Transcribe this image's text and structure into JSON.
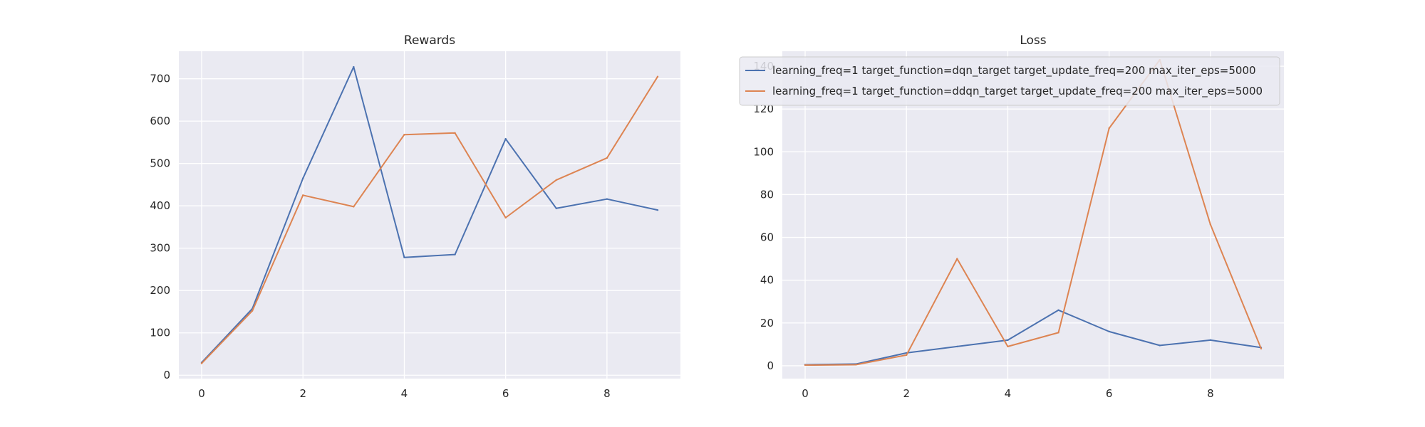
{
  "chart_data": [
    {
      "type": "line",
      "title": "Rewards",
      "xlabel": "",
      "ylabel": "",
      "x": [
        0,
        1,
        2,
        3,
        4,
        5,
        6,
        7,
        8,
        9
      ],
      "xlim": [
        -0.45,
        9.45
      ],
      "ylim": [
        -8,
        765
      ],
      "xticks": [
        0,
        2,
        4,
        6,
        8
      ],
      "yticks": [
        0,
        100,
        200,
        300,
        400,
        500,
        600,
        700
      ],
      "grid": true,
      "series": [
        {
          "color": "#4c72b0",
          "values": [
            30,
            157,
            465,
            728,
            278,
            285,
            558,
            394,
            416,
            390
          ]
        },
        {
          "color": "#dd8452",
          "values": [
            28,
            152,
            425,
            398,
            568,
            572,
            372,
            461,
            513,
            705
          ]
        }
      ]
    },
    {
      "type": "line",
      "title": "Loss",
      "xlabel": "",
      "ylabel": "",
      "x": [
        0,
        1,
        2,
        3,
        4,
        5,
        6,
        7,
        8,
        9
      ],
      "xlim": [
        -0.45,
        9.45
      ],
      "ylim": [
        -6,
        147
      ],
      "xticks": [
        0,
        2,
        4,
        6,
        8
      ],
      "yticks": [
        0,
        20,
        40,
        60,
        80,
        100,
        120,
        140
      ],
      "grid": true,
      "legend_position": "upper-left",
      "series": [
        {
          "name": "learning_freq=1 target_function=dqn_target target_update_freq=200 max_iter_eps=5000",
          "color": "#4c72b0",
          "values": [
            0.5,
            0.8,
            6,
            9,
            12,
            26,
            16,
            9.5,
            12,
            8.5
          ]
        },
        {
          "name": "learning_freq=1 target_function=ddqn_target target_update_freq=200 max_iter_eps=5000",
          "color": "#dd8452",
          "values": [
            0.3,
            0.5,
            5,
            50,
            9,
            15.5,
            111,
            143,
            66,
            8
          ]
        }
      ]
    }
  ],
  "style": {
    "axes_background": "#eaeaf2",
    "grid_color": "#ffffff",
    "text_color": "#262626"
  }
}
